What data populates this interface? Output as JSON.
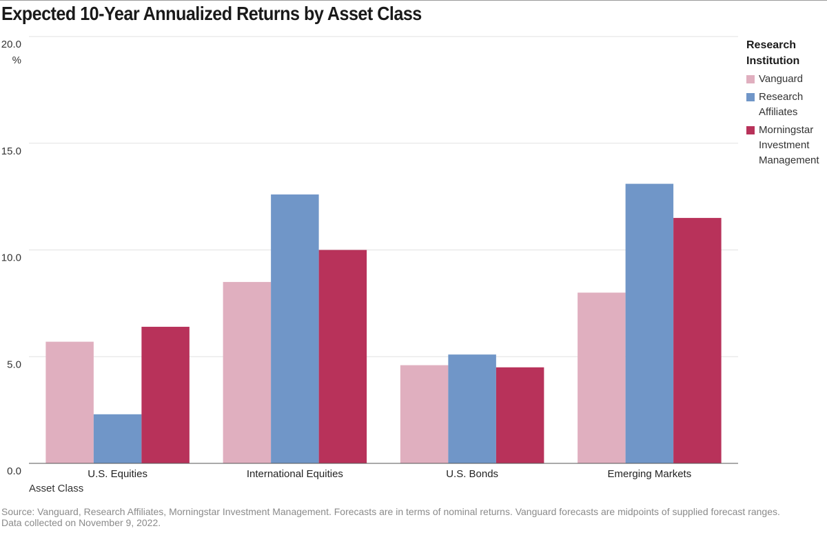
{
  "title": "Expected 10-Year Annualized Returns by Asset Class",
  "chart_data": {
    "type": "bar",
    "title": "Expected 10-Year Annualized Returns by Asset Class",
    "xlabel": "Asset Class",
    "ylabel": "",
    "y_unit": "%",
    "ylim": [
      0,
      20
    ],
    "yticks": [
      "0.0",
      "5.0",
      "10.0",
      "15.0",
      "20.0"
    ],
    "grid": true,
    "legend_placement": "right",
    "categories": [
      "U.S. Equities",
      "International Equities",
      "U.S. Bonds",
      "Emerging Markets"
    ],
    "series": [
      {
        "name": "Vanguard",
        "color": "#e0afbf",
        "values": [
          5.7,
          8.5,
          4.6,
          8.0
        ]
      },
      {
        "name": "Research Affiliates",
        "color": "#7096c8",
        "values": [
          2.3,
          12.6,
          5.1,
          13.1
        ]
      },
      {
        "name": "Morningstar Investment Management",
        "color": "#b8325a",
        "values": [
          6.4,
          10.0,
          4.5,
          11.5
        ]
      }
    ]
  },
  "legend": {
    "title_line1": "Research",
    "title_line2": "Institution",
    "items": [
      {
        "line1": "Vanguard",
        "line2": "",
        "line3": ""
      },
      {
        "line1": "Research",
        "line2": "Affiliates",
        "line3": ""
      },
      {
        "line1": "Morningstar",
        "line2": "Investment",
        "line3": "Management"
      }
    ]
  },
  "footer": {
    "line1": "Source: Vanguard, Research Affiliates, Morningstar Investment Management. Forecasts are in terms of nominal returns. Vanguard forecasts are midpoints of supplied forecast ranges.",
    "line2": "Data collected on November 9, 2022."
  }
}
